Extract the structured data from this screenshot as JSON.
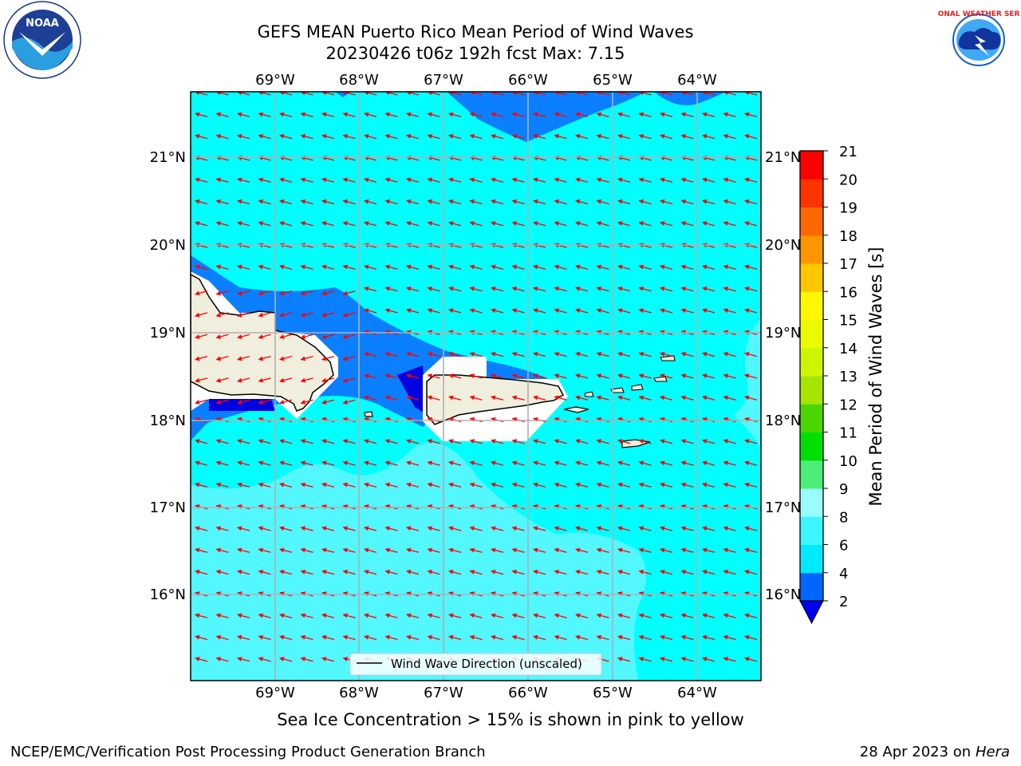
{
  "title_line1": "GEFS MEAN Puerto Rico Mean Period of Wind Waves",
  "title_line2": "20230426 t06z 192h fcst   Max: 7.15",
  "logos": {
    "left": "NOAA",
    "right": "NATIONAL WEATHER SERVICE"
  },
  "legend_label": "Wind Wave Direction (unscaled)",
  "bottom_note": "Sea Ice Concentration > 15% is shown in pink to yellow",
  "footer_left": "NCEP/EMC/Verification Post Processing Product Generation Branch",
  "footer_date": "28 Apr 2023 on ",
  "footer_host": "Hera",
  "lon_labels": [
    "69°W",
    "68°W",
    "67°W",
    "66°W",
    "65°W",
    "64°W"
  ],
  "lat_labels": [
    "21°N",
    "20°N",
    "19°N",
    "18°N",
    "17°N",
    "16°N"
  ],
  "colorbar": {
    "label": "Mean Period of Wind Waves [s]",
    "ticks": [
      "2",
      "4",
      "6",
      "8",
      "9",
      "10",
      "11",
      "12",
      "13",
      "14",
      "15",
      "16",
      "17",
      "18",
      "19",
      "20",
      "21"
    ],
    "colors": [
      "#0066ff",
      "#00eaff",
      "#3cf5ff",
      "#99fcfe",
      "#4cee77",
      "#00e000",
      "#4cd600",
      "#a6e500",
      "#cdf500",
      "#ebfa00",
      "#fff800",
      "#ffc700",
      "#ff9500",
      "#ff6700",
      "#ff3300",
      "#ff0000"
    ],
    "under_color": "#0000ee"
  },
  "colors": {
    "sea_base": "#00ffff",
    "sea_light": "#70f5ff",
    "sea_dark": "#0080ff",
    "sea_darkest": "#0000e0",
    "land": "#f0eedc",
    "arrow": "#ff0000"
  }
}
